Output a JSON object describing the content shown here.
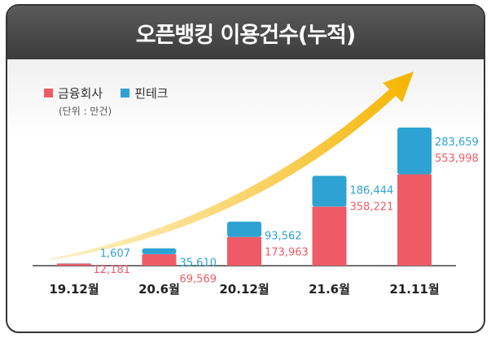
{
  "chart_data": {
    "type": "bar",
    "stacked": true,
    "title": "오픈뱅킹 이용건수(누적)",
    "unit": "(단위 : 만건)",
    "categories": [
      "19.12월",
      "20.6월",
      "20.12월",
      "21.6월",
      "21.11월"
    ],
    "series": [
      {
        "name": "금융회사",
        "color": "#ee5b67",
        "values": [
          12181,
          69569,
          173963,
          358221,
          553998
        ]
      },
      {
        "name": "핀테크",
        "color": "#2ea3d3",
        "values": [
          1607,
          35610,
          93562,
          186444,
          283659
        ]
      }
    ],
    "value_labels": {
      "금융회사": [
        "12,181",
        "69,569",
        "173,963",
        "358,221",
        "553,998"
      ],
      "핀테크": [
        "1,607",
        "35,610",
        "93,562",
        "186,444",
        "283,659"
      ]
    },
    "ylim": [
      0,
      1000000
    ],
    "grid": false,
    "legend_position": "top-left",
    "annotation": "upward trend arrow",
    "arrow_color": "#f5b400"
  }
}
